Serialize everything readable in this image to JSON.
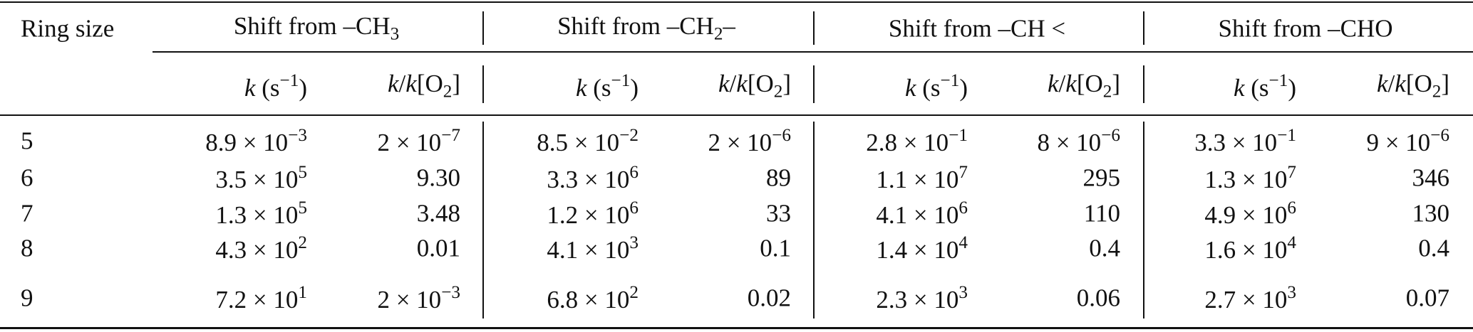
{
  "table": {
    "ring_size_header": "Ring size",
    "groups": [
      [
        "Shift from –CH",
        {
          "sub": "3"
        }
      ],
      [
        "Shift from –CH",
        {
          "sub": "2"
        },
        "–"
      ],
      [
        "Shift from –CH <"
      ],
      [
        "Shift from –CHO"
      ]
    ],
    "subheads": [
      [
        {
          "i": "k"
        },
        " (s",
        {
          "sup": "−1"
        },
        ")"
      ],
      [
        {
          "i": "k"
        },
        "/",
        {
          "i": "k"
        },
        "[O",
        {
          "sub": "2"
        },
        "]"
      ],
      [
        {
          "i": "k"
        },
        " (s",
        {
          "sup": "−1"
        },
        ")"
      ],
      [
        {
          "i": "k"
        },
        "/",
        {
          "i": "k"
        },
        "[O",
        {
          "sub": "2"
        },
        "]"
      ],
      [
        {
          "i": "k"
        },
        " (s",
        {
          "sup": "−1"
        },
        ")"
      ],
      [
        {
          "i": "k"
        },
        "/",
        {
          "i": "k"
        },
        "[O",
        {
          "sub": "2"
        },
        "]"
      ],
      [
        {
          "i": "k"
        },
        " (s",
        {
          "sup": "−1"
        },
        ")"
      ],
      [
        {
          "i": "k"
        },
        "/",
        {
          "i": "k"
        },
        "[O",
        {
          "sub": "2"
        },
        "]"
      ]
    ],
    "rows": [
      [
        "5",
        [
          "8.9 × 10",
          {
            "sup": "−3"
          }
        ],
        [
          "2 × 10",
          {
            "sup": "−7"
          }
        ],
        [
          "8.5 × 10",
          {
            "sup": "−2"
          }
        ],
        [
          "2 × 10",
          {
            "sup": "−6"
          }
        ],
        [
          "2.8 × 10",
          {
            "sup": "−1"
          }
        ],
        [
          "8 × 10",
          {
            "sup": "−6"
          }
        ],
        [
          "3.3 × 10",
          {
            "sup": "−1"
          }
        ],
        [
          "9 × 10",
          {
            "sup": "−6"
          }
        ]
      ],
      [
        "6",
        [
          "3.5 × 10",
          {
            "sup": "5"
          }
        ],
        [
          "9.30"
        ],
        [
          "3.3 × 10",
          {
            "sup": "6"
          }
        ],
        [
          "89"
        ],
        [
          "1.1 × 10",
          {
            "sup": "7"
          }
        ],
        [
          "295"
        ],
        [
          "1.3 × 10",
          {
            "sup": "7"
          }
        ],
        [
          "346"
        ]
      ],
      [
        "7",
        [
          "1.3 × 10",
          {
            "sup": "5"
          }
        ],
        [
          "3.48"
        ],
        [
          "1.2 × 10",
          {
            "sup": "6"
          }
        ],
        [
          "33"
        ],
        [
          "4.1 × 10",
          {
            "sup": "6"
          }
        ],
        [
          "110"
        ],
        [
          "4.9 × 10",
          {
            "sup": "6"
          }
        ],
        [
          "130"
        ]
      ],
      [
        "8",
        [
          "4.3 × 10",
          {
            "sup": "2"
          }
        ],
        [
          "0.01"
        ],
        [
          "4.1 × 10",
          {
            "sup": "3"
          }
        ],
        [
          "0.1"
        ],
        [
          "1.4 × 10",
          {
            "sup": "4"
          }
        ],
        [
          "0.4"
        ],
        [
          "1.6 × 10",
          {
            "sup": "4"
          }
        ],
        [
          "0.4"
        ]
      ],
      [
        "9",
        [
          "7.2 × 10",
          {
            "sup": "1"
          }
        ],
        [
          "2 × 10",
          {
            "sup": "−3"
          }
        ],
        [
          "6.8 × 10",
          {
            "sup": "2"
          }
        ],
        [
          "0.02"
        ],
        [
          "2.3 × 10",
          {
            "sup": "3"
          }
        ],
        [
          "0.06"
        ],
        [
          "2.7 × 10",
          {
            "sup": "3"
          }
        ],
        [
          "0.07"
        ]
      ]
    ]
  }
}
